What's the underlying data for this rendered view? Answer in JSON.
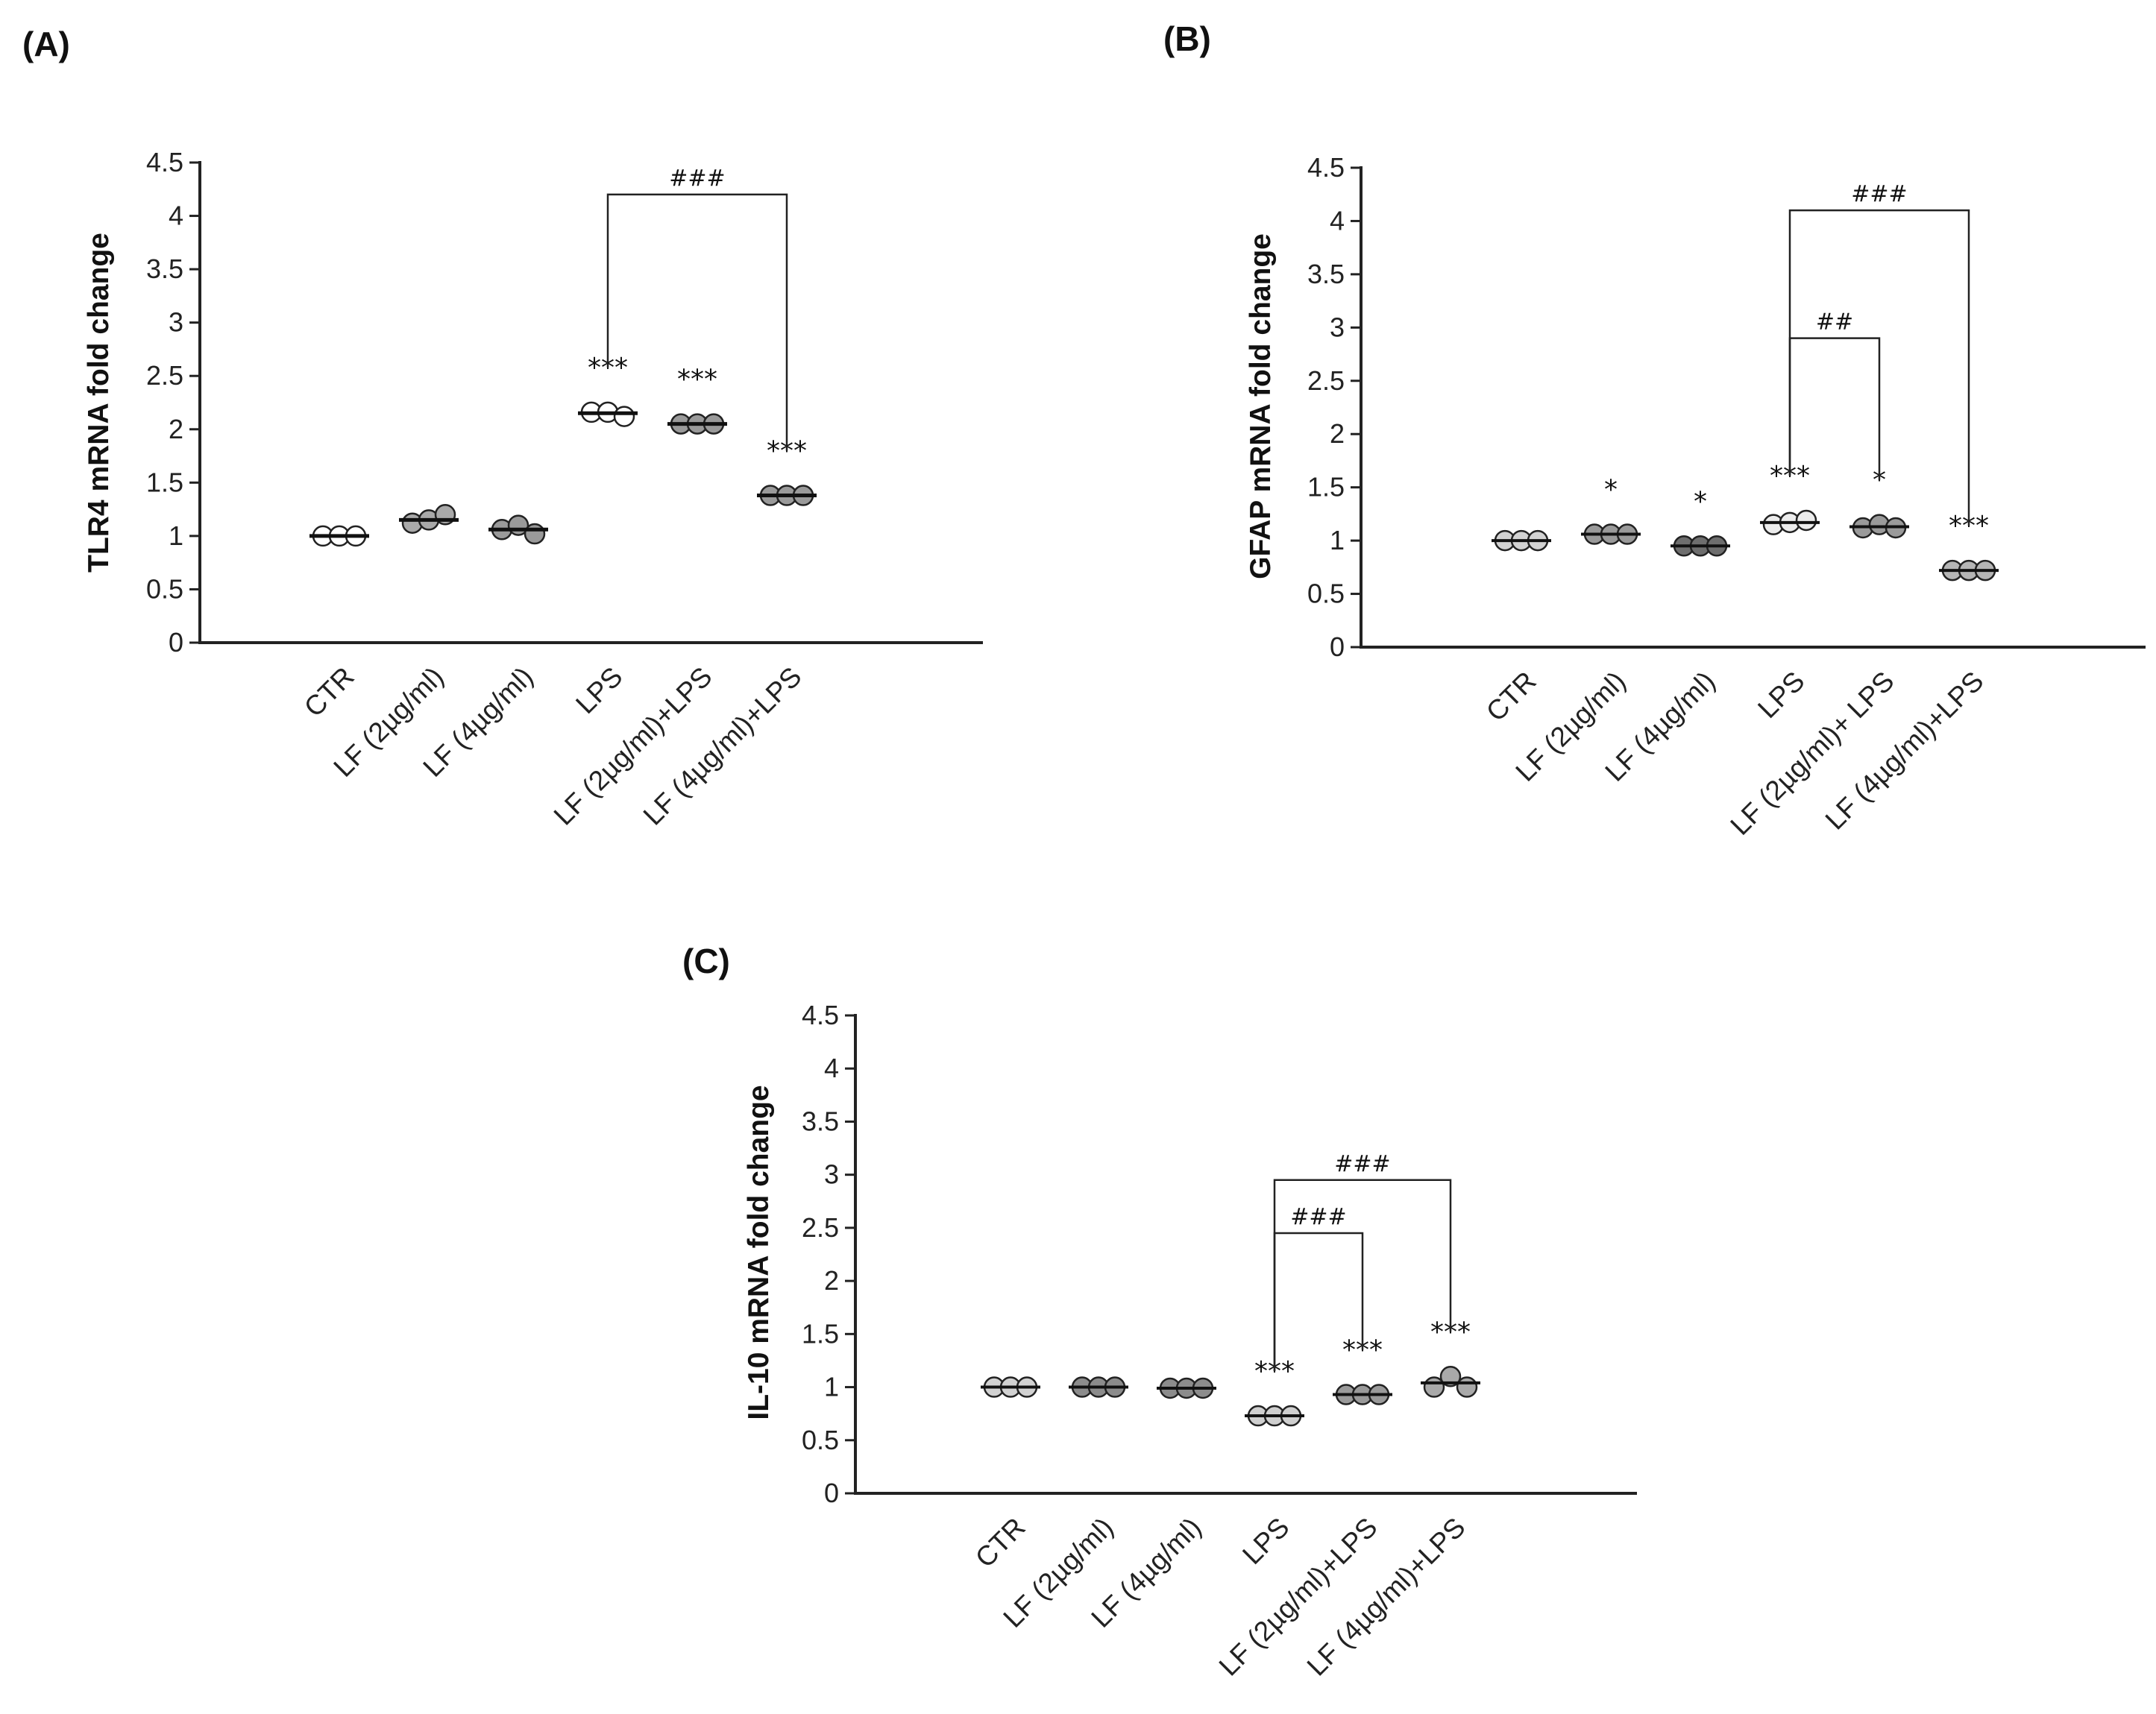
{
  "chart_data": [
    {
      "type": "scatter",
      "panel": "(A)",
      "ylabel": "TLR4 mRNA fold change",
      "ylim": [
        0,
        4.5
      ],
      "yticks": [
        "0",
        "0.5",
        "1",
        "1.5",
        "2",
        "2.5",
        "3",
        "3.5",
        "4",
        "4.5"
      ],
      "categories": [
        "CTR",
        "LF (2µg/ml)",
        "LF (4µg/ml)",
        "LPS",
        "LF (2µg/ml)+LPS",
        "LF (4µg/ml)+LPS"
      ],
      "means": [
        1.0,
        1.15,
        1.06,
        2.15,
        2.05,
        1.38
      ],
      "points": [
        [
          1.0,
          1.0,
          1.0
        ],
        [
          1.12,
          1.15,
          1.2
        ],
        [
          1.06,
          1.1,
          1.02
        ],
        [
          2.16,
          2.16,
          2.12
        ],
        [
          2.05,
          2.05,
          2.05
        ],
        [
          1.38,
          1.38,
          1.38
        ]
      ],
      "colors": [
        "#ffffff",
        "#a9a9a9",
        "#9a9a9a",
        "#ffffff",
        "#9a9a9a",
        "#9a9a9a"
      ],
      "stars": [
        "",
        "",
        "",
        "***",
        "***",
        "***"
      ],
      "brackets": [
        {
          "from": 3,
          "to": 5,
          "label": "###",
          "level": 4.2
        }
      ]
    },
    {
      "type": "scatter",
      "panel": "(B)",
      "ylabel": "GFAP mRNA fold change",
      "ylim": [
        0,
        4.5
      ],
      "yticks": [
        "0",
        "0.5",
        "1",
        "1.5",
        "2",
        "2.5",
        "3",
        "3.5",
        "4",
        "4.5"
      ],
      "categories": [
        "CTR",
        "LF (2µg/ml)",
        "LF (4µg/ml)",
        "LPS",
        "LF (2µg/ml)+ LPS",
        "LF (4µg/ml)+LPS"
      ],
      "means": [
        1.0,
        1.06,
        0.95,
        1.17,
        1.13,
        0.72
      ],
      "points": [
        [
          1.0,
          1.0,
          1.0
        ],
        [
          1.06,
          1.06,
          1.06
        ],
        [
          0.95,
          0.95,
          0.95
        ],
        [
          1.15,
          1.17,
          1.19
        ],
        [
          1.12,
          1.15,
          1.12
        ],
        [
          0.72,
          0.72,
          0.72
        ]
      ],
      "colors": [
        "#d2d2d2",
        "#9a9a9a",
        "#6e6e6e",
        "#ececec",
        "#9a9a9a",
        "#b5b5b5"
      ],
      "stars": [
        "",
        "*",
        "*",
        "***",
        "*",
        "***"
      ],
      "brackets": [
        {
          "from": 3,
          "to": 4,
          "label": "##",
          "level": 2.9
        },
        {
          "from": 3,
          "to": 5,
          "label": "###",
          "level": 4.1
        }
      ]
    },
    {
      "type": "scatter",
      "panel": "(C)",
      "ylabel": "IL-10 mRNA fold change",
      "ylim": [
        0,
        4.5
      ],
      "yticks": [
        "0",
        "0.5",
        "1",
        "1.5",
        "2",
        "2.5",
        "3",
        "3.5",
        "4",
        "4.5"
      ],
      "categories": [
        "CTR",
        "LF (2µg/ml)",
        "LF (4µg/ml)",
        "LPS",
        "LF (2µg/ml)+LPS",
        "LF (4µg/ml)+LPS"
      ],
      "means": [
        1.0,
        1.0,
        0.99,
        0.73,
        0.93,
        1.04
      ],
      "points": [
        [
          1.0,
          1.0,
          1.0
        ],
        [
          1.0,
          1.0,
          1.0
        ],
        [
          0.99,
          0.99,
          0.99
        ],
        [
          0.73,
          0.73,
          0.73
        ],
        [
          0.93,
          0.93,
          0.93
        ],
        [
          1.0,
          1.1,
          1.0
        ]
      ],
      "colors": [
        "#d2d2d2",
        "#8c8c8c",
        "#8c8c8c",
        "#cfcfcf",
        "#9a9a9a",
        "#a9a9a9"
      ],
      "stars": [
        "",
        "",
        "",
        "***",
        "***",
        "***"
      ],
      "brackets": [
        {
          "from": 3,
          "to": 4,
          "label": "###",
          "level": 2.45
        },
        {
          "from": 3,
          "to": 5,
          "label": "###",
          "level": 2.95
        }
      ]
    }
  ]
}
